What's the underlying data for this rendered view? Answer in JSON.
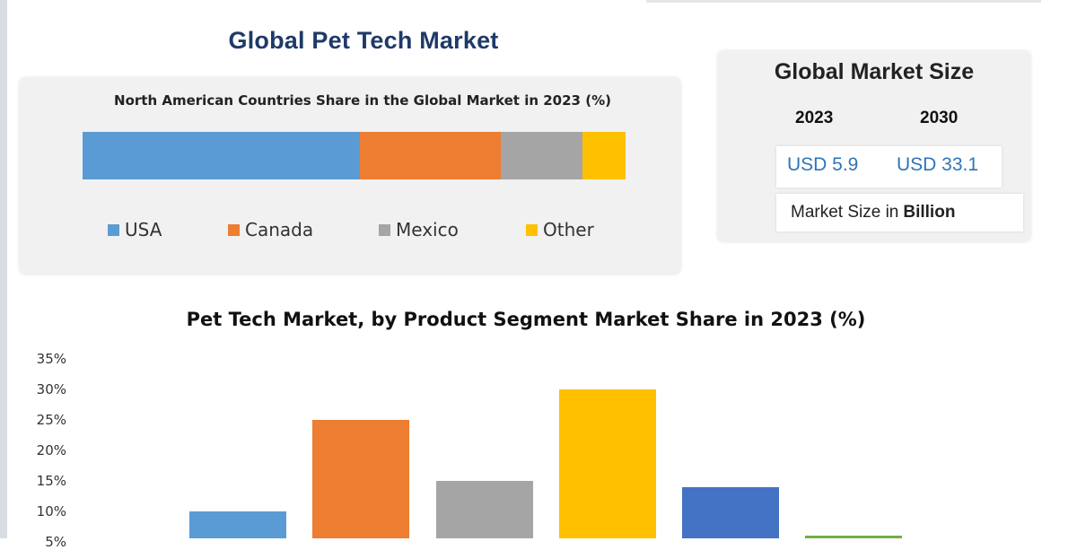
{
  "title": "Global Pet Tech Market",
  "north_america": {
    "title": "North American Countries Share in the Global Market in 2023  (%)"
  },
  "market_size": {
    "title": "Global Market Size",
    "year_2023": "2023",
    "year_2030": "2030",
    "value_2023": "USD 5.9",
    "value_2030": "USD 33.1",
    "unit_prefix": "Market Size in",
    "unit_bold": "Billion"
  },
  "chart_data": [
    {
      "type": "bar",
      "orientation": "horizontal-stacked",
      "title": "North American Countries Share in the Global Market in 2023  (%)",
      "series": [
        {
          "name": "USA",
          "values": [
            51
          ],
          "color": "#5b9bd5"
        },
        {
          "name": "Canada",
          "values": [
            26
          ],
          "color": "#ed7d31"
        },
        {
          "name": "Mexico",
          "values": [
            15
          ],
          "color": "#a5a5a5"
        },
        {
          "name": "Other",
          "values": [
            8
          ],
          "color": "#ffc000"
        }
      ],
      "legend": "bottom",
      "grid": false
    },
    {
      "type": "bar",
      "title": "Pet Tech Market, by Product Segment Market Share in 2023 (%)",
      "values": [
        10,
        25,
        15,
        30,
        14,
        6
      ],
      "colors": [
        "#5b9bd5",
        "#ed7d31",
        "#a5a5a5",
        "#ffc000",
        "#4472c4",
        "#70ad47"
      ],
      "yticks": [
        "35%",
        "30%",
        "25%",
        "20%",
        "15%",
        "10%",
        "5%"
      ],
      "ylim": [
        0,
        35
      ],
      "grid": false
    }
  ]
}
